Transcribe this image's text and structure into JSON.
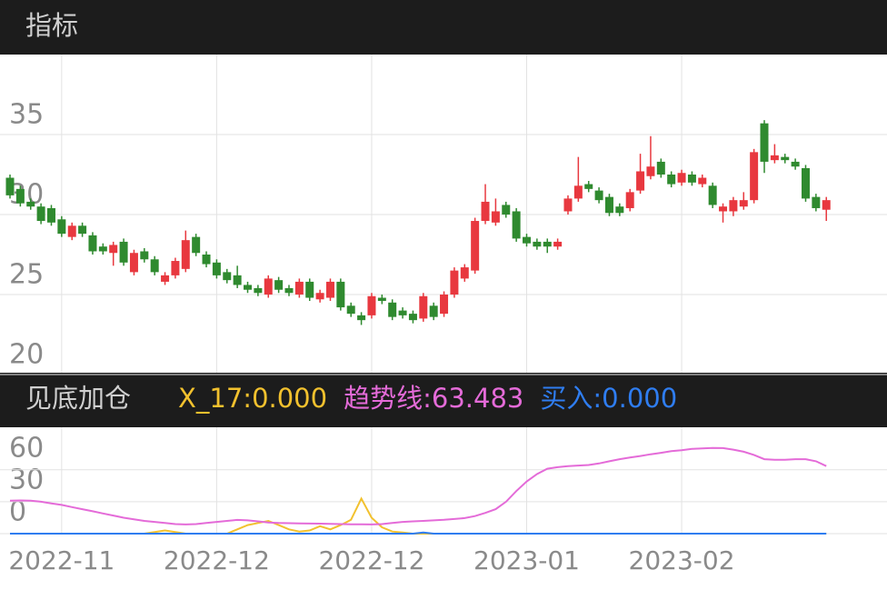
{
  "header": {
    "title": "指标"
  },
  "chart_data": [
    {
      "type": "candlestick",
      "open": [
        32.3,
        31.6,
        30.8,
        30.5,
        30.4,
        29.7,
        28.6,
        29.3,
        28.7,
        28.0,
        27.6,
        28.3,
        26.4,
        27.7,
        27.2,
        25.8,
        26.2,
        26.6,
        28.6,
        27.5,
        27.0,
        26.4,
        26.2,
        25.6,
        25.4,
        25.0,
        25.9,
        25.4,
        25.0,
        25.8,
        24.7,
        24.8,
        25.8,
        24.3,
        23.7,
        23.7,
        24.8,
        24.5,
        24.0,
        23.8,
        23.5,
        24.3,
        23.8,
        25.0,
        26.0,
        26.5,
        29.6,
        29.5,
        30.6,
        30.2,
        28.6,
        28.3,
        28.3,
        28.0,
        30.2,
        31.0,
        31.9,
        31.5,
        31.1,
        30.5,
        30.4,
        31.5,
        32.4,
        33.3,
        32.5,
        32.0,
        32.5,
        31.9,
        31.8,
        30.2,
        30.2,
        30.5,
        30.9,
        35.7,
        33.4,
        33.6,
        33.3,
        32.9,
        31.1,
        30.3
      ],
      "high": [
        32.5,
        31.8,
        31.0,
        30.7,
        30.6,
        29.9,
        29.5,
        29.5,
        28.9,
        28.2,
        28.3,
        28.5,
        27.8,
        27.9,
        27.4,
        26.4,
        27.3,
        29.0,
        28.8,
        27.7,
        27.2,
        26.6,
        26.8,
        25.8,
        25.6,
        26.2,
        26.1,
        25.6,
        26.0,
        26.0,
        25.3,
        26.0,
        26.0,
        24.5,
        23.9,
        25.1,
        25.0,
        24.7,
        24.2,
        24.0,
        25.1,
        24.5,
        25.2,
        26.7,
        26.9,
        29.8,
        31.9,
        31.0,
        30.8,
        30.4,
        28.8,
        28.5,
        28.5,
        28.5,
        31.2,
        33.6,
        32.1,
        31.7,
        31.3,
        30.7,
        31.6,
        33.8,
        34.9,
        33.5,
        32.7,
        32.8,
        32.7,
        32.5,
        32.0,
        30.7,
        31.1,
        31.4,
        34.1,
        35.9,
        34.4,
        33.8,
        33.5,
        33.1,
        31.3,
        31.1
      ],
      "low": [
        31.0,
        30.5,
        30.3,
        29.4,
        29.3,
        28.6,
        28.4,
        28.6,
        27.5,
        27.5,
        26.8,
        26.8,
        26.2,
        27.0,
        26.2,
        25.6,
        26.0,
        26.4,
        27.4,
        26.7,
        26.0,
        25.7,
        25.4,
        25.1,
        24.9,
        24.8,
        25.1,
        24.9,
        24.8,
        24.6,
        24.5,
        24.6,
        24.0,
        23.6,
        23.1,
        23.5,
        24.4,
        23.4,
        23.5,
        23.2,
        23.3,
        23.4,
        23.6,
        24.8,
        25.8,
        26.3,
        29.4,
        29.3,
        29.8,
        28.3,
        28.0,
        27.8,
        27.6,
        27.8,
        30.0,
        30.8,
        31.4,
        30.7,
        29.9,
        29.9,
        30.2,
        31.3,
        32.2,
        32.3,
        31.7,
        31.8,
        31.8,
        31.7,
        30.4,
        29.5,
        29.9,
        30.3,
        30.7,
        32.6,
        33.2,
        33.2,
        32.8,
        30.8,
        30.2,
        29.6
      ],
      "close": [
        31.2,
        30.7,
        30.5,
        29.6,
        29.5,
        28.8,
        29.3,
        28.8,
        27.7,
        27.7,
        28.1,
        27.0,
        27.6,
        27.2,
        26.4,
        26.2,
        27.1,
        28.4,
        27.6,
        26.9,
        26.2,
        25.9,
        25.6,
        25.3,
        25.1,
        26.0,
        25.3,
        25.1,
        25.8,
        24.8,
        25.1,
        25.8,
        24.2,
        23.8,
        23.4,
        24.9,
        24.6,
        23.6,
        23.7,
        23.4,
        24.9,
        23.6,
        25.0,
        26.5,
        26.7,
        29.6,
        30.8,
        30.2,
        30.0,
        28.5,
        28.2,
        28.0,
        28.0,
        28.3,
        31.0,
        31.8,
        31.6,
        30.9,
        30.1,
        30.1,
        31.4,
        32.7,
        33.0,
        32.5,
        31.9,
        32.6,
        32.0,
        32.3,
        30.6,
        30.5,
        30.9,
        30.9,
        33.9,
        33.3,
        33.7,
        33.4,
        33.0,
        31.0,
        30.4,
        30.9
      ],
      "up_color": "#e8383f",
      "down_color": "#2f8a2f",
      "ylim": [
        20,
        40
      ],
      "yticks": [
        20,
        25,
        30,
        35
      ],
      "grid": true
    },
    {
      "type": "line",
      "title": "见底加仓",
      "separator": ":",
      "categories": [
        null,
        null,
        null,
        null,
        null,
        "2022-11",
        null,
        null,
        null,
        null,
        null,
        null,
        null,
        null,
        null,
        null,
        null,
        null,
        null,
        null,
        "2022-12",
        null,
        null,
        null,
        null,
        null,
        null,
        null,
        null,
        null,
        null,
        null,
        null,
        null,
        null,
        "2022-12",
        null,
        null,
        null,
        null,
        null,
        null,
        null,
        null,
        null,
        null,
        null,
        null,
        null,
        null,
        "2023-01",
        null,
        null,
        null,
        null,
        null,
        null,
        null,
        null,
        null,
        null,
        null,
        null,
        null,
        null,
        "2023-02",
        null,
        null,
        null,
        null,
        null,
        null,
        null,
        null,
        null,
        null,
        null,
        null,
        null,
        null
      ],
      "series": [
        {
          "name": "X_17",
          "value_label": "0.000",
          "color": "#f2c12e",
          "values": [
            0,
            0,
            0,
            0,
            0,
            0,
            0,
            0,
            0,
            0,
            0,
            0,
            0,
            0,
            1.5,
            3,
            1.5,
            0,
            0,
            0,
            0,
            0,
            4,
            8,
            10,
            12,
            8,
            4,
            2,
            3,
            7,
            4,
            8,
            13,
            33,
            15,
            6,
            2,
            1,
            0,
            0,
            0,
            0,
            0,
            0,
            0,
            0,
            0,
            0,
            0,
            0,
            0,
            0,
            0,
            0,
            0,
            0,
            0,
            0,
            0,
            0,
            0,
            0,
            0,
            0,
            0,
            0,
            0,
            0,
            0,
            0,
            0,
            0,
            0,
            0,
            0,
            0,
            0,
            0,
            0
          ]
        },
        {
          "name": "趋势线",
          "value_label": "63.483",
          "color": "#e46bd8",
          "values": [
            31,
            31.2,
            31,
            30,
            28.5,
            27,
            25,
            23,
            21,
            19,
            17,
            15,
            13.5,
            12,
            11,
            10,
            9,
            8.6,
            9,
            10,
            11,
            12,
            12.9,
            12.5,
            11.5,
            10.5,
            10,
            9.8,
            9.6,
            9.5,
            9.4,
            9.2,
            9,
            8.8,
            8.7,
            8.6,
            9,
            10,
            11,
            11.5,
            12,
            12.5,
            13,
            13.8,
            14.6,
            16.5,
            19.5,
            23,
            30,
            40,
            49,
            56,
            61,
            62.5,
            63.5,
            64,
            64.5,
            66,
            68,
            70,
            71.5,
            73,
            74.6,
            76,
            77.5,
            78.5,
            79.7,
            80.2,
            80.6,
            80.4,
            79,
            77,
            74,
            70,
            69.5,
            69.5,
            70,
            70,
            68,
            63.483
          ]
        },
        {
          "name": "买入",
          "value_label": "0.000",
          "color": "#2f7df0",
          "values": [
            0,
            0,
            0,
            0,
            0,
            0,
            0,
            0,
            0,
            0,
            0,
            0,
            0,
            0,
            0,
            0,
            0,
            0,
            0,
            0,
            0,
            0,
            0,
            0,
            0,
            0,
            0,
            0,
            0,
            0,
            0,
            0,
            0,
            0,
            0,
            0,
            0,
            0,
            0,
            0,
            1,
            0,
            0,
            0,
            0,
            0,
            0,
            0,
            0,
            0,
            0,
            0,
            0,
            0,
            0,
            0,
            0,
            0,
            0,
            0,
            0,
            0,
            0,
            0,
            0,
            0,
            0,
            0,
            0,
            0,
            0,
            0,
            0,
            0,
            0,
            0,
            0,
            0,
            0,
            0
          ]
        }
      ],
      "ylim": [
        0,
        100
      ],
      "yticks": [
        0,
        30,
        60
      ],
      "grid": true
    }
  ]
}
